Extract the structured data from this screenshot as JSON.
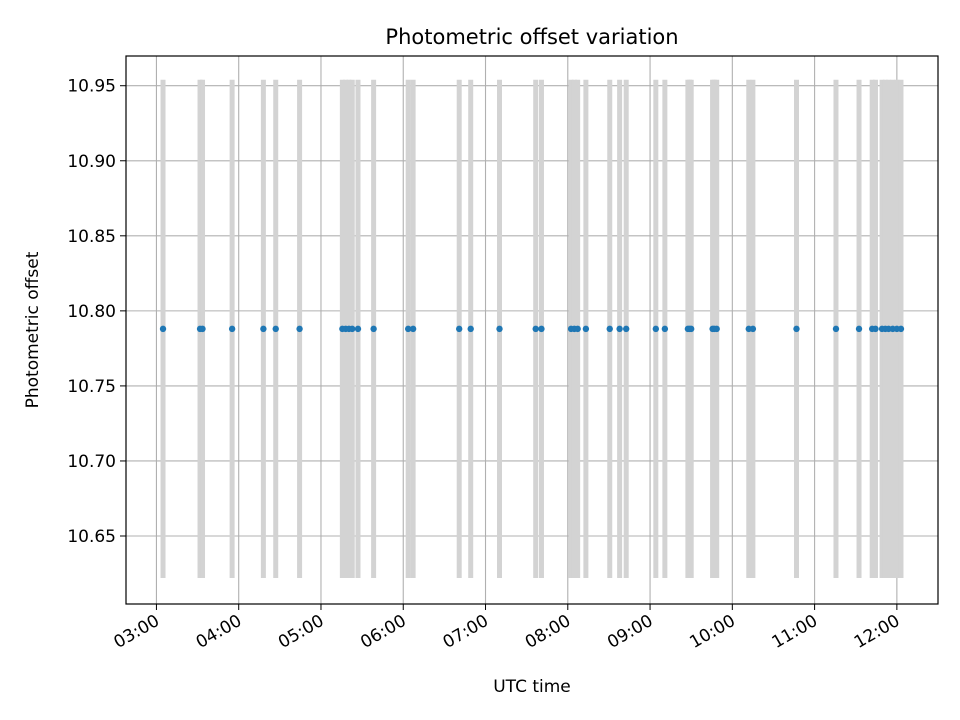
{
  "chart_data": {
    "type": "scatter",
    "title": "Photometric offset variation",
    "xlabel": "UTC time",
    "ylabel": "Photometric offset",
    "x_unit": "hours UTC",
    "xlim": [
      2.63,
      12.5
    ],
    "ylim": [
      10.6047,
      10.9698
    ],
    "xticks": [
      3,
      4,
      5,
      6,
      7,
      8,
      9,
      10,
      11,
      12
    ],
    "xtick_labels": [
      "03:00",
      "04:00",
      "05:00",
      "06:00",
      "07:00",
      "08:00",
      "09:00",
      "10:00",
      "11:00",
      "12:00"
    ],
    "yticks": [
      10.65,
      10.7,
      10.75,
      10.8,
      10.85,
      10.9,
      10.95
    ],
    "ytick_labels": [
      "10.65",
      "10.70",
      "10.75",
      "10.80",
      "10.85",
      "10.90",
      "10.95"
    ],
    "grid": true,
    "series": [
      {
        "color": "#1f77b4",
        "y_value": 10.788,
        "x": [
          3.08,
          3.53,
          3.56,
          3.92,
          4.3,
          4.45,
          4.74,
          5.26,
          5.3,
          5.34,
          5.38,
          5.45,
          5.64,
          6.06,
          6.12,
          6.68,
          6.82,
          7.17,
          7.61,
          7.68,
          8.04,
          8.08,
          8.12,
          8.22,
          8.51,
          8.63,
          8.71,
          9.07,
          9.18,
          9.46,
          9.48,
          9.5,
          9.76,
          9.78,
          9.81,
          10.2,
          10.25,
          10.78,
          11.26,
          11.54,
          11.7,
          11.74,
          11.82,
          11.86,
          11.9,
          11.95,
          12.0,
          12.05
        ],
        "error_bars": {
          "color": "#d3d3d3",
          "lower": 10.622,
          "upper": 10.954
        }
      }
    ]
  }
}
